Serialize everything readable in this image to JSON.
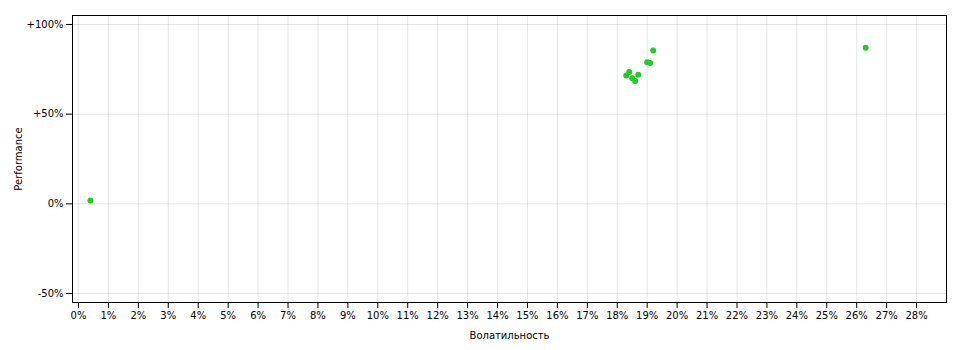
{
  "chart_data": {
    "type": "scatter",
    "xlabel": "Волатильность",
    "ylabel": "Performance",
    "x": [
      0.004,
      0.183,
      0.184,
      0.185,
      0.186,
      0.187,
      0.19,
      0.191,
      0.192,
      0.263
    ],
    "values": [
      0.018,
      0.715,
      0.735,
      0.7,
      0.685,
      0.72,
      0.79,
      0.785,
      0.855,
      0.87
    ],
    "color": "#22cc22",
    "xlim": [
      -0.002,
      0.29
    ],
    "ylim": [
      -0.55,
      1.05
    ],
    "xticks": [
      {
        "value": 0,
        "label": "0%"
      },
      {
        "value": 0.01,
        "label": "1%"
      },
      {
        "value": 0.02,
        "label": "2%"
      },
      {
        "value": 0.03,
        "label": "3%"
      },
      {
        "value": 0.04,
        "label": "4%"
      },
      {
        "value": 0.05,
        "label": "5%"
      },
      {
        "value": 0.06,
        "label": "6%"
      },
      {
        "value": 0.07,
        "label": "7%"
      },
      {
        "value": 0.08,
        "label": "8%"
      },
      {
        "value": 0.09,
        "label": "9%"
      },
      {
        "value": 0.1,
        "label": "10%"
      },
      {
        "value": 0.11,
        "label": "11%"
      },
      {
        "value": 0.12,
        "label": "12%"
      },
      {
        "value": 0.13,
        "label": "13%"
      },
      {
        "value": 0.14,
        "label": "14%"
      },
      {
        "value": 0.15,
        "label": "15%"
      },
      {
        "value": 0.16,
        "label": "16%"
      },
      {
        "value": 0.17,
        "label": "17%"
      },
      {
        "value": 0.18,
        "label": "18%"
      },
      {
        "value": 0.19,
        "label": "19%"
      },
      {
        "value": 0.2,
        "label": "20%"
      },
      {
        "value": 0.21,
        "label": "21%"
      },
      {
        "value": 0.22,
        "label": "22%"
      },
      {
        "value": 0.23,
        "label": "23%"
      },
      {
        "value": 0.24,
        "label": "24%"
      },
      {
        "value": 0.25,
        "label": "25%"
      },
      {
        "value": 0.26,
        "label": "26%"
      },
      {
        "value": 0.27,
        "label": "27%"
      },
      {
        "value": 0.28,
        "label": "28%"
      }
    ],
    "yticks": [
      {
        "value": -0.5,
        "label": "-50%"
      },
      {
        "value": 0,
        "label": "0%"
      },
      {
        "value": 0.5,
        "label": "+50%"
      },
      {
        "value": 1,
        "label": "+100%"
      }
    ],
    "grid": true
  }
}
